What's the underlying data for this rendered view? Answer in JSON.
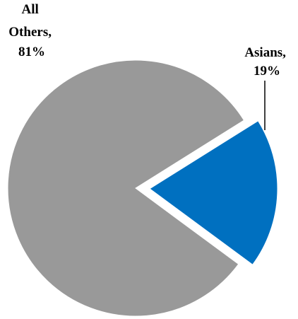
{
  "chart_data": {
    "type": "pie",
    "title": "",
    "slices": [
      {
        "name": "Asians",
        "value": 19,
        "color": "#0070C0",
        "exploded": true,
        "label_lines": [
          "Asians,",
          "19%"
        ]
      },
      {
        "name": "All Others",
        "value": 81,
        "color": "#999999",
        "exploded": false,
        "label_lines": [
          "All",
          "Others,",
          "81%"
        ]
      }
    ],
    "legend": "none",
    "data_labels": "outside, category name and percentage"
  }
}
